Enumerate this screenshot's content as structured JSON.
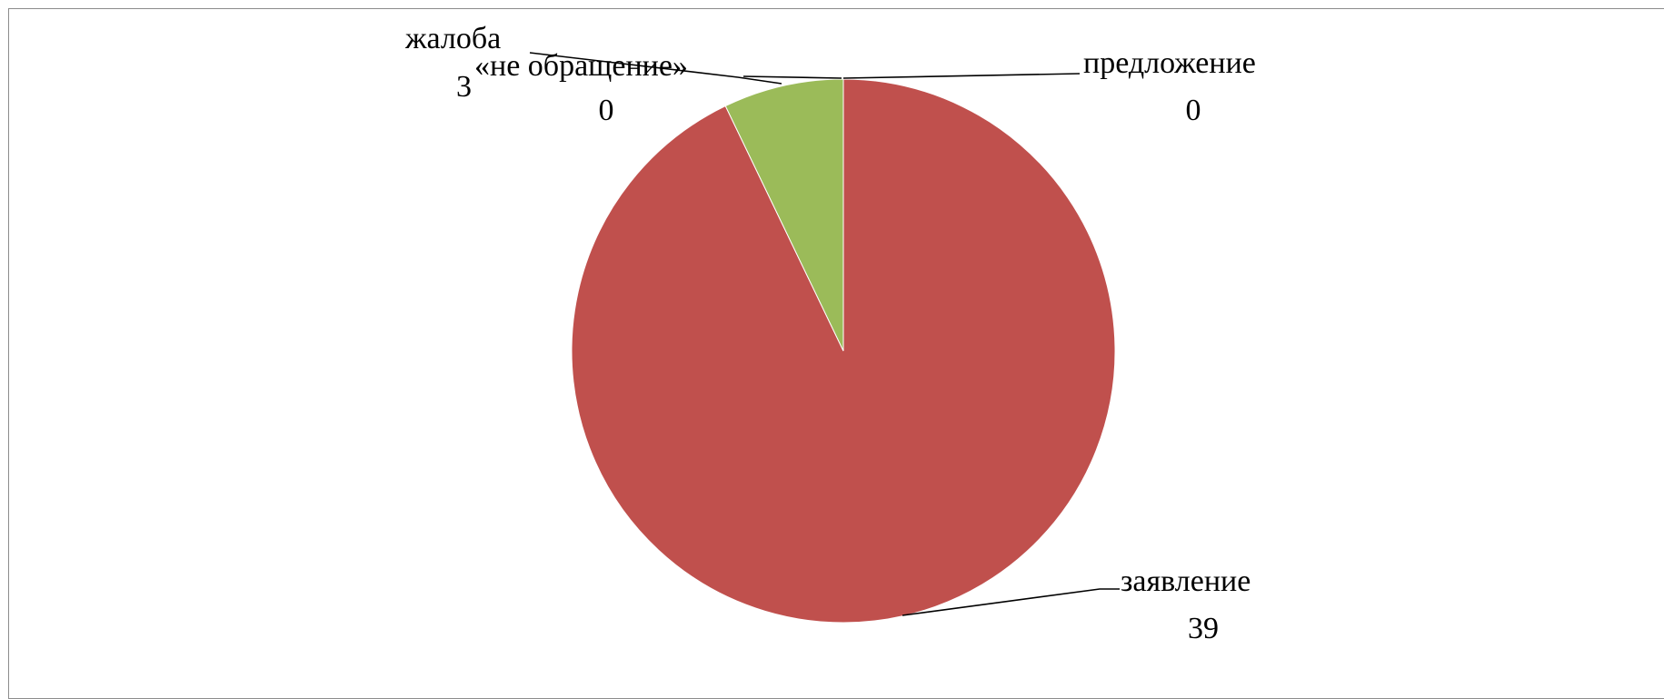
{
  "chart_data": {
    "type": "pie",
    "title": "",
    "slices": [
      {
        "name": "предложение",
        "value": 0,
        "color": "#4F81BD"
      },
      {
        "name": "заявление",
        "value": 39,
        "color": "#C0504D"
      },
      {
        "name": "жалоба",
        "value": 3,
        "color": "#9BBB59"
      },
      {
        "name": "«не обращение»",
        "value": 0,
        "color": "#8064A2"
      }
    ],
    "start_angle_deg": 0,
    "direction": "clockwise",
    "legend": "none",
    "data_labels": "category and value"
  }
}
